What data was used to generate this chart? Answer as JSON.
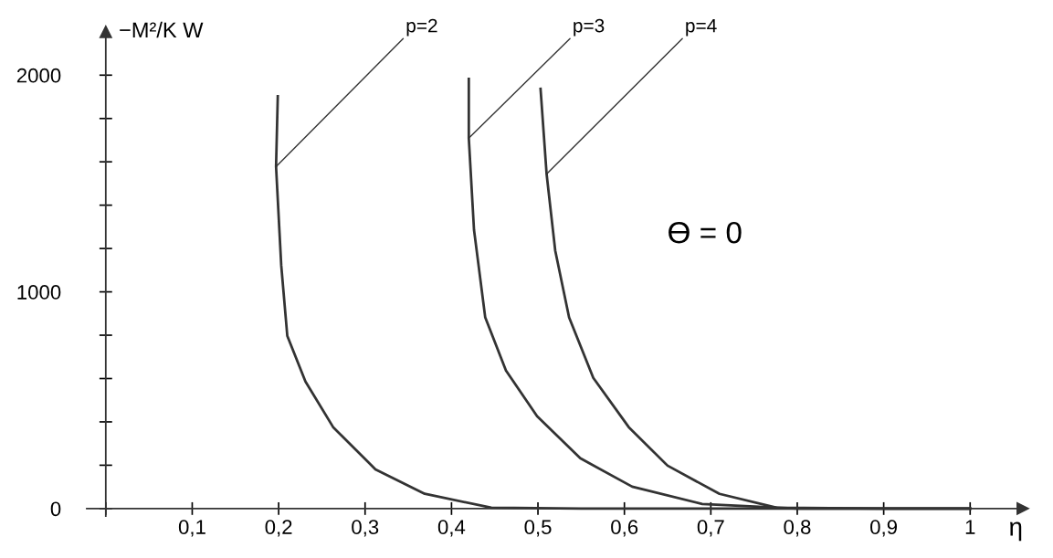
{
  "chart_data": {
    "type": "line",
    "xlabel": "η",
    "ylabel": "−M²/K W",
    "annotations": [
      "ϴ = 0"
    ],
    "xlim": [
      -0.022,
      1.061
    ],
    "ylim": [
      -35,
      2200
    ],
    "xticks": [
      {
        "value": 0,
        "label": null
      },
      {
        "value": 0.1,
        "label": "0,1"
      },
      {
        "value": 0.2,
        "label": "0,2"
      },
      {
        "value": 0.3,
        "label": "0,3"
      },
      {
        "value": 0.4,
        "label": "0,4"
      },
      {
        "value": 0.5,
        "label": "0,5"
      },
      {
        "value": 0.6,
        "label": "0,6"
      },
      {
        "value": 0.7,
        "label": "0,7"
      },
      {
        "value": 0.8,
        "label": "0,8"
      },
      {
        "value": 0.9,
        "label": "0,9"
      },
      {
        "value": 1,
        "label": "1"
      }
    ],
    "yticks": [
      0,
      {
        "value": 200,
        "label": null
      },
      {
        "value": 400,
        "label": null
      },
      {
        "value": 600,
        "label": null
      },
      {
        "value": 800,
        "label": null
      },
      1000,
      {
        "value": 1200,
        "label": null
      },
      {
        "value": 1400,
        "label": null
      },
      {
        "value": 1600,
        "label": null
      },
      {
        "value": 1800,
        "label": null
      },
      2000
    ],
    "grid": false,
    "legend": false,
    "marker": "none",
    "line_style": "solid",
    "series": [
      {
        "name": "p=2",
        "color": "#333333",
        "x": [
          0.199,
          0.197,
          0.203,
          0.21,
          0.231,
          0.263,
          0.312,
          0.369,
          0.446,
          0.55,
          1.0
        ],
        "values": [
          1903,
          1578,
          1122,
          797,
          586,
          376,
          181,
          68,
          4,
          0,
          0
        ]
      },
      {
        "name": "p=3",
        "color": "#333333",
        "x": [
          0.42,
          0.42,
          0.426,
          0.439,
          0.463,
          0.499,
          0.549,
          0.609,
          0.69,
          0.8,
          1.0
        ],
        "values": [
          1983,
          1709,
          1287,
          882,
          637,
          426,
          232,
          101,
          21,
          0,
          0
        ]
      },
      {
        "name": "p=4",
        "color": "#333333",
        "x": [
          0.503,
          0.51,
          0.52,
          0.536,
          0.564,
          0.605,
          0.65,
          0.71,
          0.776,
          0.9,
          1.0
        ],
        "values": [
          1937,
          1544,
          1190,
          882,
          603,
          376,
          198,
          68,
          4,
          0,
          0
        ]
      }
    ]
  }
}
